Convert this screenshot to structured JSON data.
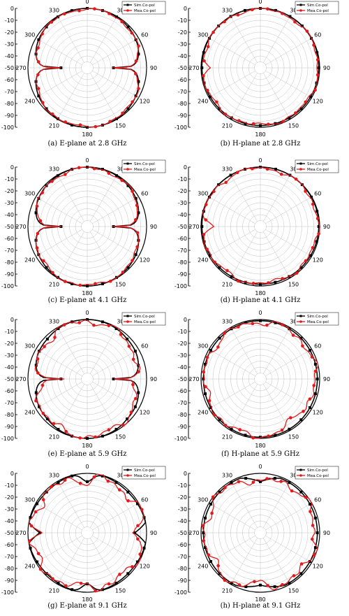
{
  "chart_data": [
    {
      "type": "polar-line",
      "caption": "(a) E-plane at 2.8 GHz",
      "pattern": "E",
      "sim_name": "Sim.Co-pol",
      "meas_name": "Mea.Co-pol",
      "rlim": [
        -100,
        0
      ],
      "r_ticks": [
        "0",
        "-10",
        "-20",
        "-30",
        "-40",
        "-50",
        "-60",
        "-70",
        "-80",
        "-90",
        "-100"
      ],
      "angle_ticks": [
        "0",
        "30",
        "60",
        "90",
        "120",
        "150",
        "180",
        "210",
        "240",
        "270",
        "300",
        "330"
      ],
      "grid": true,
      "legend": "top-right",
      "sim_color": "#000000",
      "meas_color": "#e31a1c",
      "nulls_db": [
        -62,
        -62
      ],
      "ripple": 2.5
    },
    {
      "type": "polar-line",
      "caption": "(b) H-plane at 2.8 GHz",
      "pattern": "H",
      "sim_name": "Sim.Co-pol",
      "meas_name": "Mea.Co-pol",
      "rlim": [
        -100,
        0
      ],
      "r_ticks": [
        "0",
        "-10",
        "-20",
        "-30",
        "-40",
        "-50",
        "-60",
        "-70",
        "-80",
        "-90",
        "-100"
      ],
      "angle_ticks": [
        "0",
        "30",
        "60",
        "90",
        "120",
        "150",
        "180",
        "210",
        "240",
        "270",
        "300",
        "330"
      ],
      "grid": true,
      "legend": "top-right",
      "sim_color": "#000000",
      "meas_color": "#e31a1c",
      "ripple": 3
    },
    {
      "type": "polar-line",
      "caption": "(c) E-plane at 4.1 GHz",
      "pattern": "E",
      "sim_name": "Sim.Co-pol",
      "meas_name": "Mea.Co-pol",
      "rlim": [
        -100,
        0
      ],
      "r_ticks": [
        "0",
        "-10",
        "-20",
        "-30",
        "-40",
        "-50",
        "-60",
        "-70",
        "-80",
        "-90",
        "-100"
      ],
      "angle_ticks": [
        "0",
        "30",
        "60",
        "90",
        "120",
        "150",
        "180",
        "210",
        "240",
        "270",
        "300",
        "330"
      ],
      "grid": true,
      "legend": "top-right",
      "sim_color": "#000000",
      "meas_color": "#e31a1c",
      "nulls_db": [
        -62,
        -62
      ],
      "ripple": 3
    },
    {
      "type": "polar-line",
      "caption": "(d) H-plane at 4.1 GHz",
      "pattern": "H",
      "sim_name": "Sim.Co-pol",
      "meas_name": "Mea.Co-pol",
      "rlim": [
        -100,
        0
      ],
      "r_ticks": [
        "0",
        "-10",
        "-20",
        "-30",
        "-40",
        "-50",
        "-60",
        "-70",
        "-80",
        "-90",
        "-100"
      ],
      "angle_ticks": [
        "0",
        "30",
        "60",
        "90",
        "120",
        "150",
        "180",
        "210",
        "240",
        "270",
        "300",
        "330"
      ],
      "grid": true,
      "legend": "top-right",
      "sim_color": "#000000",
      "meas_color": "#e31a1c",
      "ripple": 4
    },
    {
      "type": "polar-line",
      "caption": "(e) E-plane at 5.9 GHz",
      "pattern": "E2",
      "sim_name": "Sim.Co-pol",
      "meas_name": "Mea.Co-pol",
      "rlim": [
        -100,
        0
      ],
      "r_ticks": [
        "0",
        "-10",
        "-20",
        "-30",
        "-40",
        "-50",
        "-60",
        "-70",
        "-80",
        "-90",
        "-100"
      ],
      "angle_ticks": [
        "0",
        "30",
        "60",
        "90",
        "120",
        "150",
        "180",
        "210",
        "240",
        "270",
        "300",
        "330"
      ],
      "grid": true,
      "legend": "top-right",
      "sim_color": "#000000",
      "meas_color": "#e31a1c",
      "ripple": 7
    },
    {
      "type": "polar-line",
      "caption": "(f) H-plane at 5.9 GHz",
      "pattern": "H2",
      "sim_name": "Sim.Co-pol",
      "meas_name": "Mea.Co-pol",
      "rlim": [
        -100,
        0
      ],
      "r_ticks": [
        "0",
        "-10",
        "-20",
        "-30",
        "-40",
        "-50",
        "-60",
        "-70",
        "-80",
        "-90",
        "-100"
      ],
      "angle_ticks": [
        "0",
        "30",
        "60",
        "90",
        "120",
        "150",
        "180",
        "210",
        "240",
        "270",
        "300",
        "330"
      ],
      "grid": true,
      "legend": "top-right",
      "sim_color": "#000000",
      "meas_color": "#e31a1c",
      "ripple": 6
    },
    {
      "type": "polar-line",
      "caption": "(g) E-plane at 9.1 GHz",
      "pattern": "E3",
      "sim_name": "Sim.Co-pol",
      "meas_name": "Mea.Co-pol",
      "rlim": [
        -100,
        0
      ],
      "r_ticks": [
        "0",
        "-10",
        "-20",
        "-30",
        "-40",
        "-50",
        "-60",
        "-70",
        "-80",
        "-90",
        "-100"
      ],
      "angle_ticks": [
        "0",
        "30",
        "60",
        "90",
        "120",
        "150",
        "180",
        "210",
        "240",
        "270",
        "300",
        "330"
      ],
      "grid": true,
      "legend": "top-right",
      "sim_color": "#000000",
      "meas_color": "#e31a1c",
      "ripple": 9
    },
    {
      "type": "polar-line",
      "caption": "(h) H-plane at 9.1 GHz",
      "pattern": "H3",
      "sim_name": "Sim.Co-pol",
      "meas_name": "Mea.Co-pol",
      "rlim": [
        -100,
        0
      ],
      "r_ticks": [
        "0",
        "-10",
        "-20",
        "-30",
        "-40",
        "-50",
        "-60",
        "-70",
        "-80",
        "-90",
        "-100"
      ],
      "angle_ticks": [
        "0",
        "30",
        "60",
        "90",
        "120",
        "150",
        "180",
        "210",
        "240",
        "270",
        "300",
        "330"
      ],
      "grid": true,
      "legend": "top-right",
      "sim_color": "#000000",
      "meas_color": "#e31a1c",
      "ripple": 8
    }
  ]
}
